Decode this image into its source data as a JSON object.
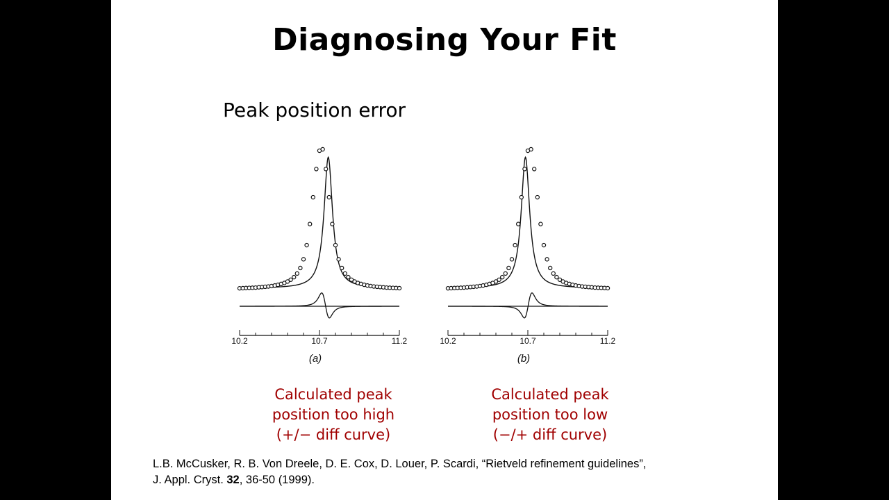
{
  "slide": {
    "title": "Diagnosing Your Fit",
    "subtitle": "Peak position error"
  },
  "chart_data": [
    {
      "type": "scatter",
      "panel_label": "(a)",
      "x_ticks": [
        "10.2",
        "10.7",
        "11.2"
      ],
      "xlim": [
        10.2,
        11.2
      ],
      "caption": [
        "Calculated peak",
        "position too high",
        "(+/− diff curve)"
      ],
      "observed": {
        "x": [
          10.2,
          10.22,
          10.24,
          10.26,
          10.28,
          10.3,
          10.32,
          10.34,
          10.36,
          10.38,
          10.4,
          10.42,
          10.44,
          10.46,
          10.48,
          10.5,
          10.52,
          10.54,
          10.56,
          10.58,
          10.6,
          10.62,
          10.64,
          10.66,
          10.68,
          10.7,
          10.72,
          10.74,
          10.76,
          10.78,
          10.8,
          10.82,
          10.84,
          10.86,
          10.88,
          10.9,
          10.92,
          10.94,
          10.96,
          10.98,
          11.0,
          11.02,
          11.04,
          11.06,
          11.08,
          11.1,
          11.12,
          11.14,
          11.16,
          11.18,
          11.2
        ],
        "y": [
          0.014,
          0.015,
          0.016,
          0.017,
          0.018,
          0.019,
          0.021,
          0.023,
          0.025,
          0.027,
          0.03,
          0.034,
          0.039,
          0.045,
          0.052,
          0.062,
          0.075,
          0.093,
          0.119,
          0.158,
          0.22,
          0.32,
          0.47,
          0.66,
          0.86,
          0.99,
          1.0,
          0.86,
          0.66,
          0.47,
          0.32,
          0.22,
          0.158,
          0.119,
          0.093,
          0.075,
          0.062,
          0.052,
          0.045,
          0.039,
          0.034,
          0.03,
          0.027,
          0.025,
          0.023,
          0.021,
          0.019,
          0.018,
          0.017,
          0.016,
          0.015
        ]
      },
      "calculated_peak": 10.755,
      "calculated_peak_height": 0.93,
      "difference_sign": "+/-"
    },
    {
      "type": "scatter",
      "panel_label": "(b)",
      "x_ticks": [
        "10.2",
        "10.7",
        "11.2"
      ],
      "xlim": [
        10.2,
        11.2
      ],
      "caption": [
        "Calculated peak",
        "position too low",
        "(−/+ diff curve)"
      ],
      "observed": {
        "x": [
          10.2,
          10.22,
          10.24,
          10.26,
          10.28,
          10.3,
          10.32,
          10.34,
          10.36,
          10.38,
          10.4,
          10.42,
          10.44,
          10.46,
          10.48,
          10.5,
          10.52,
          10.54,
          10.56,
          10.58,
          10.6,
          10.62,
          10.64,
          10.66,
          10.68,
          10.7,
          10.72,
          10.74,
          10.76,
          10.78,
          10.8,
          10.82,
          10.84,
          10.86,
          10.88,
          10.9,
          10.92,
          10.94,
          10.96,
          10.98,
          11.0,
          11.02,
          11.04,
          11.06,
          11.08,
          11.1,
          11.12,
          11.14,
          11.16,
          11.18,
          11.2
        ],
        "y": [
          0.014,
          0.015,
          0.016,
          0.017,
          0.018,
          0.019,
          0.021,
          0.023,
          0.025,
          0.027,
          0.03,
          0.034,
          0.039,
          0.045,
          0.052,
          0.062,
          0.075,
          0.093,
          0.119,
          0.158,
          0.22,
          0.32,
          0.47,
          0.66,
          0.86,
          0.99,
          1.0,
          0.86,
          0.66,
          0.47,
          0.32,
          0.22,
          0.158,
          0.119,
          0.093,
          0.075,
          0.062,
          0.052,
          0.045,
          0.039,
          0.034,
          0.03,
          0.027,
          0.025,
          0.023,
          0.021,
          0.019,
          0.018,
          0.017,
          0.016,
          0.015
        ]
      },
      "calculated_peak": 10.685,
      "calculated_peak_height": 0.93,
      "difference_sign": "-/+"
    }
  ],
  "reference": {
    "line1": "L.B. McCusker, R. B. Von Dreele, D. E. Cox, D. Louer, P. Scardi, “Rietveld refinement guidelines”,",
    "line2_prefix": "J. Appl. Cryst. ",
    "line2_volume": "32",
    "line2_suffix": ", 36-50 (1999)."
  }
}
